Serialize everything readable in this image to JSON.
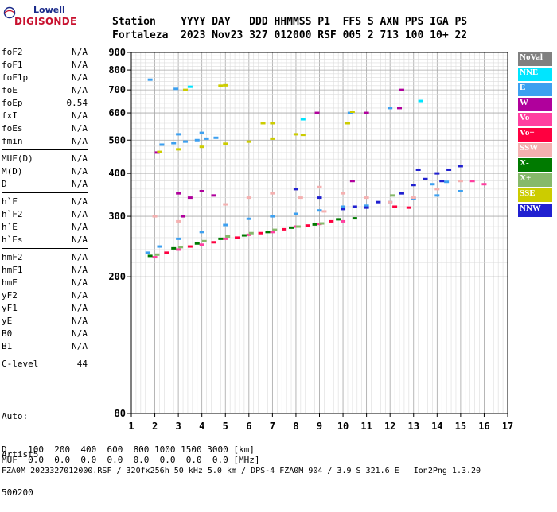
{
  "logo": {
    "line1": "Lowell",
    "line2": "DIGISONDE"
  },
  "header": {
    "labels_line": "Station    YYYY DAY   DDD HHMMSS P1  FFS S AXN PPS IGA PS",
    "values_line": "Fortaleza  2023 Nov23 327 012000 RSF 005 2 713 100 10+ 22"
  },
  "params": {
    "group1": [
      {
        "name": "foF2",
        "value": "N/A"
      },
      {
        "name": "foF1",
        "value": "N/A"
      },
      {
        "name": "foF1p",
        "value": "N/A"
      },
      {
        "name": "foE",
        "value": "N/A"
      },
      {
        "name": "foEp",
        "value": "0.54"
      },
      {
        "name": "fxI",
        "value": "N/A"
      },
      {
        "name": "foEs",
        "value": "N/A"
      },
      {
        "name": "fmin",
        "value": "N/A"
      }
    ],
    "group2": [
      {
        "name": "MUF(D)",
        "value": "N/A"
      },
      {
        "name": "M(D)",
        "value": "N/A"
      },
      {
        "name": "D",
        "value": "N/A"
      }
    ],
    "group3": [
      {
        "name": "h`F",
        "value": "N/A"
      },
      {
        "name": "h`F2",
        "value": "N/A"
      },
      {
        "name": "h`E",
        "value": "N/A"
      },
      {
        "name": "h`Es",
        "value": "N/A"
      }
    ],
    "group4": [
      {
        "name": "hmF2",
        "value": "N/A"
      },
      {
        "name": "hmF1",
        "value": "N/A"
      },
      {
        "name": "hmE",
        "value": "N/A"
      },
      {
        "name": "yF2",
        "value": "N/A"
      },
      {
        "name": "yF1",
        "value": "N/A"
      },
      {
        "name": "yE",
        "value": "N/A"
      },
      {
        "name": "B0",
        "value": "N/A"
      },
      {
        "name": "B1",
        "value": "N/A"
      }
    ],
    "group5": [
      {
        "name": "C-level",
        "value": "44"
      }
    ]
  },
  "auto": {
    "line1": "Auto:",
    "line2": "Artist5",
    "line3": "500200"
  },
  "footer": {
    "d_line": "D    100  200  400  600  800 1000 1500 3000 [km]",
    "muf_line": "MUF  0.0  0.0  0.0  0.0  0.0  0.0  0.0  0.0 [MHz]",
    "info_line": "FZA0M_2023327012000.RSF / 320fx256h 50 kHz 5.0 km / DPS-4 FZA0M 904 / 3.9 S 321.6 E   Ion2Png 1.3.20"
  },
  "legend": [
    {
      "label": "NoVal",
      "color": "#808080"
    },
    {
      "label": "NNE",
      "color": "#00e5ff"
    },
    {
      "label": "E",
      "color": "#3da0f0"
    },
    {
      "label": "W",
      "color": "#b0009c"
    },
    {
      "label": "Vo-",
      "color": "#ff3fa0"
    },
    {
      "label": "Vo+",
      "color": "#ff0040"
    },
    {
      "label": "SSW",
      "color": "#f4b0b0"
    },
    {
      "label": "X-",
      "color": "#007a00"
    },
    {
      "label": "X+",
      "color": "#86b96a"
    },
    {
      "label": "SSE",
      "color": "#cccc00"
    },
    {
      "label": "NNW",
      "color": "#2020d0"
    }
  ],
  "chart_data": {
    "type": "scatter",
    "title": "",
    "xlabel": "",
    "ylabel": "",
    "xlim": [
      1,
      17
    ],
    "ylim": [
      80,
      900
    ],
    "y_scale": "log",
    "x_ticks": [
      1,
      2,
      3,
      4,
      5,
      6,
      7,
      8,
      9,
      10,
      11,
      12,
      13,
      14,
      15,
      16,
      17
    ],
    "y_ticks": [
      80,
      200,
      300,
      400,
      500,
      600,
      700,
      800,
      900
    ],
    "grid": true,
    "legend_position": "right",
    "series": [
      {
        "name": "E",
        "points": [
          [
            1.7,
            235
          ],
          [
            2.2,
            245
          ],
          [
            3,
            258
          ],
          [
            4,
            270
          ],
          [
            5,
            283
          ],
          [
            6,
            295
          ],
          [
            7,
            300
          ],
          [
            8,
            305
          ],
          [
            9,
            312
          ],
          [
            10,
            320
          ],
          [
            11,
            322
          ],
          [
            12,
            330
          ],
          [
            13,
            338
          ],
          [
            14,
            345
          ],
          [
            15,
            355
          ],
          [
            2.3,
            485
          ],
          [
            2.8,
            490
          ],
          [
            3.3,
            495
          ],
          [
            3.8,
            500
          ],
          [
            4.2,
            505
          ],
          [
            4.6,
            508
          ],
          [
            3,
            520
          ],
          [
            4,
            525
          ],
          [
            1.8,
            750
          ],
          [
            2.9,
            705
          ],
          [
            12,
            620
          ],
          [
            10.3,
            600
          ],
          [
            13.8,
            372
          ],
          [
            14.4,
            378
          ]
        ]
      },
      {
        "name": "NNE",
        "points": [
          [
            8.3,
            575
          ],
          [
            13.3,
            650
          ],
          [
            3.5,
            715
          ]
        ]
      },
      {
        "name": "W",
        "points": [
          [
            3,
            350
          ],
          [
            3.5,
            340
          ],
          [
            4,
            355
          ],
          [
            4.5,
            345
          ],
          [
            3.2,
            300
          ],
          [
            12.5,
            700
          ],
          [
            12.4,
            620
          ],
          [
            11,
            600
          ],
          [
            10.4,
            380
          ],
          [
            2.1,
            460
          ],
          [
            8.9,
            600
          ]
        ]
      },
      {
        "name": "Vo-",
        "points": [
          [
            2,
            228
          ],
          [
            3,
            240
          ],
          [
            4,
            248
          ],
          [
            5,
            258
          ],
          [
            6,
            265
          ],
          [
            7,
            270
          ],
          [
            8,
            280
          ],
          [
            9,
            285
          ],
          [
            10,
            290
          ],
          [
            16,
            372
          ],
          [
            15.5,
            380
          ]
        ]
      },
      {
        "name": "Vo+",
        "points": [
          [
            2.5,
            235
          ],
          [
            3.5,
            245
          ],
          [
            4.5,
            252
          ],
          [
            5.5,
            260
          ],
          [
            6.5,
            268
          ],
          [
            7.5,
            275
          ],
          [
            8.5,
            282
          ],
          [
            9.5,
            290
          ],
          [
            12.2,
            320
          ],
          [
            12.8,
            318
          ]
        ]
      },
      {
        "name": "SSW",
        "points": [
          [
            5,
            325
          ],
          [
            6,
            340
          ],
          [
            7,
            350
          ],
          [
            8,
            360
          ],
          [
            9,
            365
          ],
          [
            10,
            350
          ],
          [
            11,
            340
          ],
          [
            12,
            330
          ],
          [
            13,
            340
          ],
          [
            14,
            360
          ],
          [
            15,
            380
          ],
          [
            2,
            300
          ],
          [
            3,
            290
          ],
          [
            9.2,
            310
          ],
          [
            8.2,
            340
          ]
        ]
      },
      {
        "name": "X-",
        "points": [
          [
            1.8,
            230
          ],
          [
            2.8,
            242
          ],
          [
            3.8,
            250
          ],
          [
            4.8,
            258
          ],
          [
            5.8,
            264
          ],
          [
            6.8,
            270
          ],
          [
            7.8,
            278
          ],
          [
            8.8,
            284
          ],
          [
            9.8,
            294
          ],
          [
            10.5,
            296
          ]
        ]
      },
      {
        "name": "X+",
        "points": [
          [
            2.1,
            232
          ],
          [
            3.1,
            244
          ],
          [
            4.1,
            254
          ],
          [
            5.1,
            262
          ],
          [
            6.1,
            268
          ],
          [
            7.1,
            274
          ],
          [
            8.1,
            280
          ],
          [
            9.1,
            286
          ],
          [
            12.1,
            345
          ]
        ]
      },
      {
        "name": "SSE",
        "points": [
          [
            2.2,
            462
          ],
          [
            3,
            470
          ],
          [
            4,
            478
          ],
          [
            5,
            488
          ],
          [
            6,
            495
          ],
          [
            7,
            505
          ],
          [
            8,
            520
          ],
          [
            8.3,
            518
          ],
          [
            4.8,
            720
          ],
          [
            5,
            722
          ],
          [
            3.3,
            700
          ],
          [
            10.4,
            605
          ],
          [
            7,
            560
          ],
          [
            10.2,
            560
          ],
          [
            6.6,
            560
          ]
        ]
      },
      {
        "name": "NNW",
        "points": [
          [
            10,
            315
          ],
          [
            10.5,
            320
          ],
          [
            11,
            318
          ],
          [
            11.5,
            330
          ],
          [
            12.5,
            350
          ],
          [
            13,
            370
          ],
          [
            13.5,
            385
          ],
          [
            14,
            400
          ],
          [
            14.5,
            410
          ],
          [
            15,
            420
          ],
          [
            13.2,
            410
          ],
          [
            14.2,
            380
          ],
          [
            8,
            360
          ],
          [
            9,
            340
          ]
        ]
      }
    ]
  }
}
